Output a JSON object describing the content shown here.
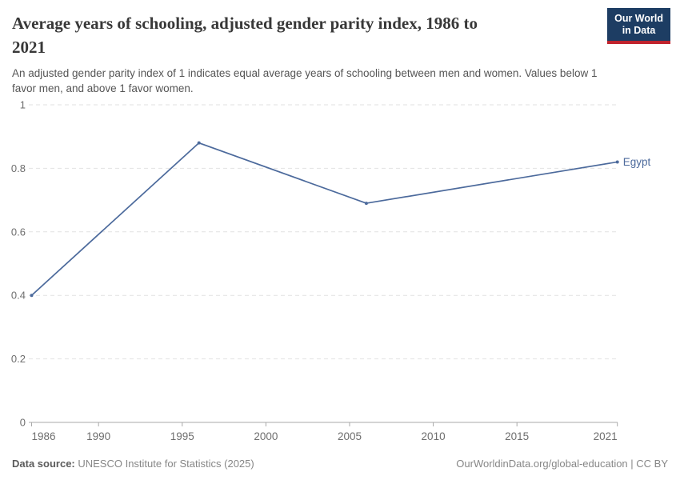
{
  "header": {
    "title": "Average years of schooling, adjusted gender parity index, 1986 to 2021",
    "title_lines": [
      "Average years of schooling, adjusted gender parity index, 1986 to",
      "2021"
    ],
    "subtitle": "An adjusted gender parity index of 1 indicates equal average years of schooling between men and women. Values below 1 favor men, and above 1 favor women.",
    "subtitle_lines": [
      "An adjusted gender parity index of 1 indicates equal average years of schooling between men and women. Values below 1",
      "favor men, and above 1 favor women."
    ],
    "logo": {
      "line1": "Our World",
      "line2": "in Data"
    }
  },
  "chart_data": {
    "type": "line",
    "title": "Average years of schooling, adjusted gender parity index, 1986 to 2021",
    "x": [
      1986,
      1996,
      2006,
      2021
    ],
    "series": [
      {
        "name": "Egypt",
        "color": "#4C6A9C",
        "values": [
          0.4,
          0.88,
          0.69,
          0.82
        ]
      }
    ],
    "end_label": "Egypt",
    "xlabel": "",
    "ylabel": "",
    "xlim": [
      1986,
      2021
    ],
    "ylim": [
      0,
      1
    ],
    "xticks": [
      1986,
      1990,
      1995,
      2000,
      2005,
      2010,
      2015,
      2021
    ],
    "yticks": [
      0,
      0.2,
      0.4,
      0.6,
      0.8,
      1
    ],
    "grid": "horizontal-dashed",
    "legend": "line-end-label"
  },
  "colors": {
    "line": "#4C6A9C",
    "gridline": "#e2e2e2",
    "axis": "#a8a8a8",
    "axis_text": "#6e6e6e",
    "logo_bg": "#1d3d63",
    "logo_stripe": "#c0232d"
  },
  "footer": {
    "source_label": "Data source:",
    "source_text": " UNESCO Institute for Statistics (2025)",
    "right_text": "OurWorldinData.org/global-education | CC BY"
  }
}
